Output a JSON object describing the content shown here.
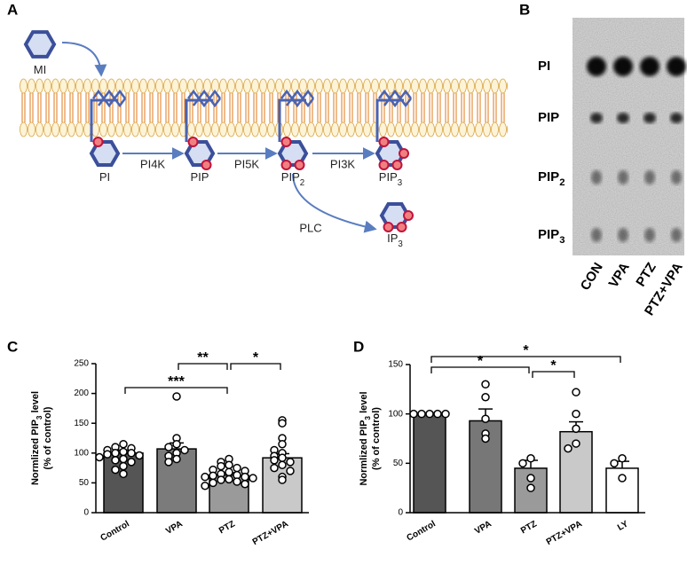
{
  "panels": [
    "A",
    "B",
    "C",
    "D"
  ],
  "diagram": {
    "molecules": [
      {
        "base": "MI",
        "sub": ""
      },
      {
        "base": "PI",
        "sub": ""
      },
      {
        "base": "PIP",
        "sub": ""
      },
      {
        "base": "PIP",
        "sub": "2"
      },
      {
        "base": "PIP",
        "sub": "3"
      },
      {
        "base": "IP",
        "sub": "3"
      }
    ],
    "enzymes": [
      "PI4K",
      "PI5K",
      "PI3K",
      "PLC"
    ]
  },
  "blot": {
    "rows": [
      {
        "base": "PI",
        "sub": ""
      },
      {
        "base": "PIP",
        "sub": ""
      },
      {
        "base": "PIP",
        "sub": "2"
      },
      {
        "base": "PIP",
        "sub": "3"
      }
    ],
    "lanes": [
      "CON",
      "VPA",
      "PTZ",
      "PTZ+VPA"
    ]
  },
  "chart_data": [
    {
      "type": "bar",
      "ylabel": {
        "base": "Normlized PIP",
        "sub": "3",
        "after": " level"
      },
      "ylabel2": "(% of control)",
      "categories": [
        "Control",
        "VPA",
        "PTZ",
        "PTZ+VPA"
      ],
      "values": [
        100,
        107,
        63,
        92
      ],
      "errors": [
        5,
        10,
        4,
        7
      ],
      "points": [
        [
          115,
          110,
          108,
          105,
          102,
          100,
          100,
          98,
          96,
          93,
          90,
          88,
          85,
          78,
          72,
          65
        ],
        [
          195,
          125,
          115,
          110,
          105,
          100,
          95,
          90,
          85
        ],
        [
          90,
          85,
          80,
          78,
          75,
          72,
          70,
          68,
          65,
          63,
          62,
          60,
          60,
          58,
          56,
          55,
          52,
          50,
          48,
          45
        ],
        [
          155,
          150,
          125,
          115,
          105,
          100,
          95,
          92,
          88,
          85,
          80,
          75,
          70,
          60,
          55
        ]
      ],
      "colors": [
        "#555555",
        "#7b7b7b",
        "#9a9a9a",
        "#c9c9c9"
      ],
      "ylim": [
        0,
        250
      ],
      "yticks": [
        0,
        50,
        100,
        150,
        200,
        250
      ],
      "annotations": [
        {
          "between": [
            "VPA",
            "PTZ"
          ],
          "label": "**"
        },
        {
          "between": [
            "PTZ",
            "PTZ+VPA"
          ],
          "label": "*"
        },
        {
          "between": [
            "Control",
            "PTZ"
          ],
          "label": "***"
        }
      ]
    },
    {
      "type": "bar",
      "ylabel": {
        "base": "Normlized PIP",
        "sub": "3",
        "after": " level"
      },
      "ylabel2": "(% of control)",
      "categories": [
        "Control",
        "VPA",
        "PTZ",
        "PTZ+VPA",
        "LY"
      ],
      "values": [
        100,
        93,
        45,
        82,
        45
      ],
      "errors": [
        0,
        12,
        8,
        10,
        7
      ],
      "points": [
        [
          100,
          100,
          100,
          100,
          100
        ],
        [
          130,
          117,
          95,
          80,
          75
        ],
        [
          55,
          50,
          35,
          25
        ],
        [
          122,
          100,
          85,
          70,
          65
        ],
        [
          55,
          50,
          35
        ]
      ],
      "colors": [
        "#555555",
        "#777777",
        "#9a9a9a",
        "#c9c9c9",
        "#ffffff"
      ],
      "ylim": [
        0,
        150
      ],
      "yticks": [
        0,
        50,
        100,
        150
      ],
      "annotations": [
        {
          "between": [
            "Control",
            "LY"
          ],
          "label": "*"
        },
        {
          "between": [
            "Control",
            "PTZ"
          ],
          "label": "*"
        },
        {
          "between": [
            "PTZ",
            "PTZ+VPA"
          ],
          "label": "*"
        }
      ]
    }
  ]
}
